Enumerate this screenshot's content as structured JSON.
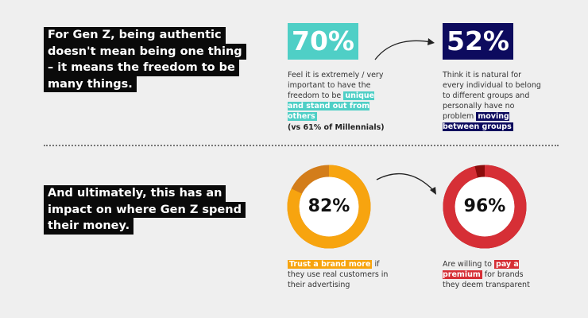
{
  "section1": {
    "headline": [
      "For Gen Z, being authentic",
      "doesn't mean being one thing",
      "– it means the freedom to be",
      "many things."
    ],
    "stat1": {
      "value": "70%",
      "color": "#4fcfc6",
      "text_before": "Feel it is extremely / very important to have the freedom to be ",
      "highlight": "unique and stand out from others",
      "text_after": "",
      "note": "(vs 61% of Millennials)"
    },
    "stat2": {
      "value": "52%",
      "color": "#0d0b5e",
      "text_before": "Think it is natural for every individual to belong to different groups and personally have no problem ",
      "highlight": "moving between groups",
      "text_after": ""
    }
  },
  "section2": {
    "headline": [
      "And ultimately, this has an",
      "impact on where Gen Z spend",
      "their money."
    ],
    "stat1": {
      "value": "82%",
      "percent": 82,
      "color": "#f7a40f",
      "accent": "#d37d1a",
      "text_before": "",
      "highlight": "Trust a brand more",
      "text_after": " if they use real customers in their advertising"
    },
    "stat2": {
      "value": "96%",
      "percent": 96,
      "color": "#d62f36",
      "accent": "#8b0c0c",
      "text_before": "Are willing to ",
      "highlight": "pay a premium",
      "text_after": " for brands they deem transparent"
    }
  }
}
